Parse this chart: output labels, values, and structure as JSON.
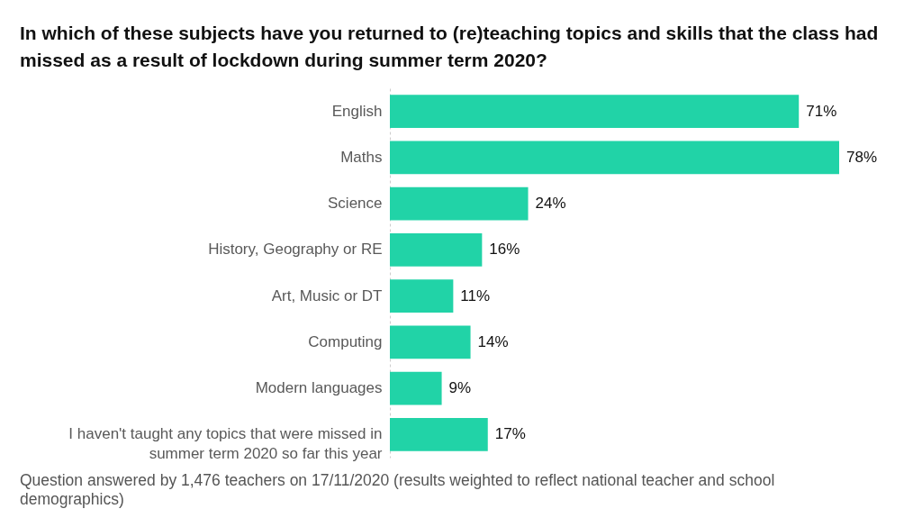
{
  "chart_data": {
    "type": "bar",
    "orientation": "horizontal",
    "title": "In which of these subjects have you returned to (re)teaching topics and skills that the class had missed as a result of lockdown during summer term 2020?",
    "categories": [
      "English",
      "Maths",
      "Science",
      "History, Geography or RE",
      "Art, Music or DT",
      "Computing",
      "Modern languages",
      "I haven't taught any topics that were missed in summer term 2020 so far this year"
    ],
    "values": [
      71,
      78,
      24,
      16,
      11,
      14,
      9,
      17
    ],
    "value_labels": [
      "71%",
      "78%",
      "24%",
      "16%",
      "11%",
      "14%",
      "9%",
      "17%"
    ],
    "color": "#21d3a7",
    "annotations": [
      "Question answered by 1,476 teachers on 17/11/2020 (results weighted to reflect national teacher and school demographics)"
    ]
  }
}
